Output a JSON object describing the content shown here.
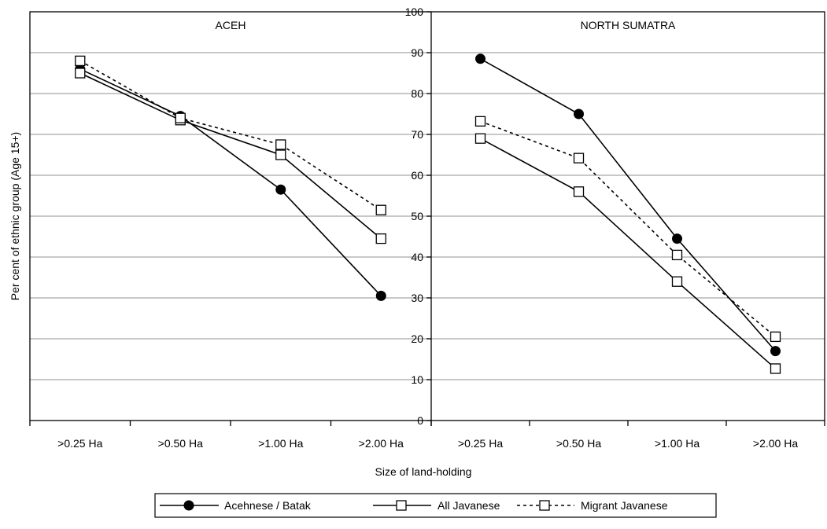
{
  "chart_data": {
    "type": "line",
    "ylabel": "Per cent of ethnic group (Age 15+)",
    "xlabel": "Size of land-holding",
    "ylim": [
      0,
      100
    ],
    "yticks": [
      0,
      10,
      20,
      30,
      40,
      50,
      60,
      70,
      80,
      90,
      100
    ],
    "ytick_labels": [
      "0",
      "10",
      "20",
      "30",
      "40",
      "50",
      "60",
      "70",
      "80",
      "90",
      "100"
    ],
    "categories": [
      ">0.25 Ha",
      ">0.50 Ha",
      ">1.00 Ha",
      ">2.00 Ha"
    ],
    "grid": true,
    "legend_position": "bottom-center",
    "legend": [
      {
        "name": "Acehnese / Batak",
        "marker": "filled-circle",
        "line": "solid"
      },
      {
        "name": "All Javanese",
        "marker": "open-square",
        "line": "solid"
      },
      {
        "name": "Migrant Javanese",
        "marker": "open-square",
        "line": "dotted"
      }
    ],
    "panels": [
      {
        "title": "ACEH",
        "series": [
          {
            "name": "Acehnese / Batak",
            "values": [
              86,
              74.5,
              56.5,
              30.5
            ]
          },
          {
            "name": "All Javanese",
            "values": [
              85,
              73.5,
              65,
              44.5
            ]
          },
          {
            "name": "Migrant Javanese",
            "values": [
              88,
              74,
              67.5,
              51.5
            ]
          }
        ]
      },
      {
        "title": "NORTH SUMATRA",
        "series": [
          {
            "name": "Acehnese / Batak",
            "values": [
              88.5,
              75,
              44.5,
              17
            ]
          },
          {
            "name": "All Javanese",
            "values": [
              69,
              56,
              34,
              12.7
            ]
          },
          {
            "name": "Migrant Javanese",
            "values": [
              73.2,
              64.2,
              40.5,
              20.5
            ]
          }
        ]
      }
    ]
  }
}
